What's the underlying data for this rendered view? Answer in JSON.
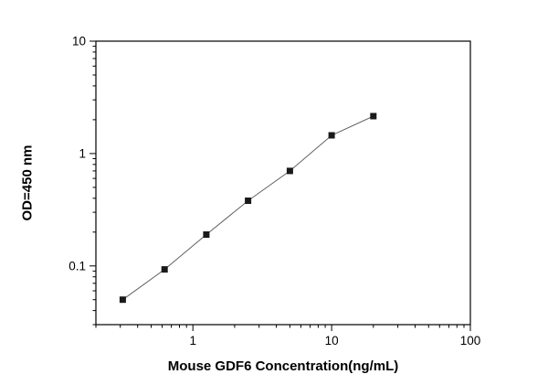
{
  "figure": {
    "background": "#ffffff"
  },
  "chart_data": {
    "type": "line",
    "title": "",
    "xlabel": "Mouse GDF6 Concentration(ng/mL)",
    "ylabel": "OD=450 nm",
    "xscale": "log",
    "yscale": "log",
    "xlim": [
      0.2,
      100
    ],
    "ylim": [
      0.03,
      10
    ],
    "x_major_ticks": [
      1,
      10,
      100
    ],
    "x_major_tick_labels": [
      "1",
      "10",
      "100"
    ],
    "y_major_ticks": [
      0.1,
      1,
      10
    ],
    "y_major_tick_labels": [
      "0.1",
      "1",
      "10"
    ],
    "grid": "off",
    "legend": "none",
    "marker": "filled-square",
    "marker_color": "#1a1a1a",
    "line_color": "#606060",
    "axis_color": "#000000",
    "x": [
      0.3125,
      0.625,
      1.25,
      2.5,
      5,
      10,
      20
    ],
    "y": [
      0.05,
      0.093,
      0.19,
      0.38,
      0.7,
      1.45,
      2.15
    ]
  }
}
